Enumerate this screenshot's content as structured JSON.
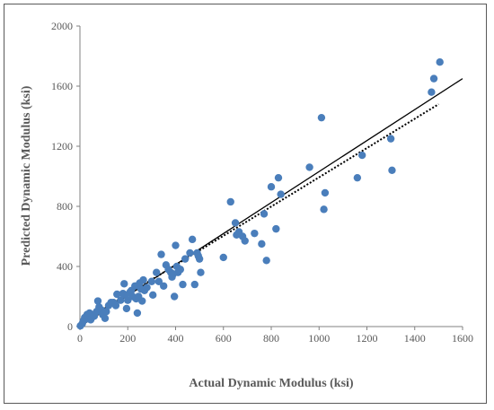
{
  "chart_data": {
    "type": "scatter",
    "title": "",
    "xlabel": "Actual Dynamic Modulus (ksi)",
    "ylabel": "Predicted Dynamic Modulus (ksi)",
    "xlim": [
      0,
      1600
    ],
    "ylim": [
      0,
      2000
    ],
    "x_ticks": [
      "0",
      "200",
      "400",
      "600",
      "800",
      "1000",
      "1200",
      "1400",
      "1600"
    ],
    "y_ticks": [
      "0",
      "400",
      "800",
      "1200",
      "1600",
      "2000"
    ],
    "grid": false,
    "legend": "none",
    "marker_color": "#4a7ebb",
    "points": [
      [
        2,
        5
      ],
      [
        10,
        20
      ],
      [
        15,
        40
      ],
      [
        20,
        60
      ],
      [
        25,
        50
      ],
      [
        30,
        80
      ],
      [
        35,
        70
      ],
      [
        40,
        90
      ],
      [
        45,
        45
      ],
      [
        50,
        60
      ],
      [
        55,
        80
      ],
      [
        60,
        70
      ],
      [
        70,
        100
      ],
      [
        75,
        170
      ],
      [
        80,
        130
      ],
      [
        90,
        110
      ],
      [
        95,
        80
      ],
      [
        100,
        90
      ],
      [
        105,
        55
      ],
      [
        110,
        100
      ],
      [
        120,
        140
      ],
      [
        130,
        160
      ],
      [
        140,
        160
      ],
      [
        150,
        140
      ],
      [
        155,
        215
      ],
      [
        170,
        175
      ],
      [
        180,
        220
      ],
      [
        185,
        285
      ],
      [
        190,
        210
      ],
      [
        195,
        120
      ],
      [
        200,
        175
      ],
      [
        210,
        230
      ],
      [
        215,
        240
      ],
      [
        220,
        200
      ],
      [
        230,
        270
      ],
      [
        235,
        185
      ],
      [
        240,
        90
      ],
      [
        245,
        200
      ],
      [
        250,
        290
      ],
      [
        255,
        250
      ],
      [
        260,
        170
      ],
      [
        265,
        310
      ],
      [
        270,
        240
      ],
      [
        280,
        260
      ],
      [
        300,
        300
      ],
      [
        305,
        210
      ],
      [
        320,
        360
      ],
      [
        330,
        300
      ],
      [
        340,
        480
      ],
      [
        350,
        270
      ],
      [
        360,
        410
      ],
      [
        370,
        380
      ],
      [
        380,
        360
      ],
      [
        385,
        330
      ],
      [
        390,
        350
      ],
      [
        395,
        200
      ],
      [
        400,
        540
      ],
      [
        405,
        400
      ],
      [
        410,
        360
      ],
      [
        420,
        380
      ],
      [
        430,
        280
      ],
      [
        440,
        450
      ],
      [
        460,
        490
      ],
      [
        470,
        580
      ],
      [
        480,
        280
      ],
      [
        490,
        490
      ],
      [
        495,
        470
      ],
      [
        500,
        450
      ],
      [
        505,
        360
      ],
      [
        600,
        460
      ],
      [
        630,
        830
      ],
      [
        650,
        690
      ],
      [
        655,
        610
      ],
      [
        665,
        630
      ],
      [
        680,
        600
      ],
      [
        690,
        570
      ],
      [
        730,
        620
      ],
      [
        760,
        550
      ],
      [
        770,
        750
      ],
      [
        780,
        440
      ],
      [
        800,
        930
      ],
      [
        820,
        650
      ],
      [
        830,
        990
      ],
      [
        840,
        880
      ],
      [
        960,
        1060
      ],
      [
        1010,
        1390
      ],
      [
        1020,
        780
      ],
      [
        1025,
        890
      ],
      [
        1160,
        990
      ],
      [
        1180,
        1140
      ],
      [
        1300,
        1250
      ],
      [
        1305,
        1040
      ],
      [
        1470,
        1560
      ],
      [
        1480,
        1650
      ],
      [
        1505,
        1760
      ]
    ],
    "lines": [
      {
        "style": "solid",
        "color": "#000000",
        "x": [
          0,
          1600
        ],
        "y": [
          0,
          1650
        ]
      },
      {
        "style": "dotted",
        "color": "#000000",
        "x": [
          0,
          1500
        ],
        "y": [
          20,
          1480
        ]
      }
    ]
  }
}
